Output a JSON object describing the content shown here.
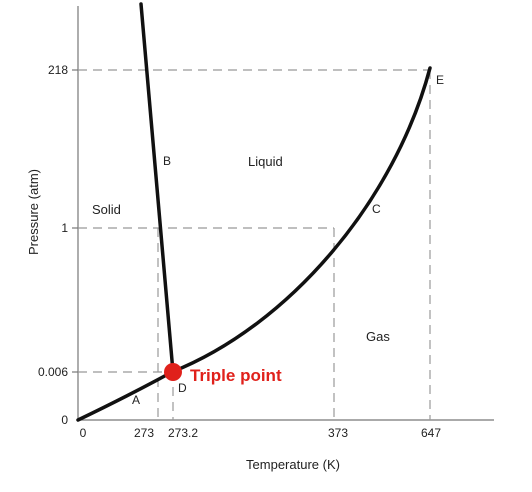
{
  "chart_data": {
    "type": "phase-diagram",
    "xlabel": "Temperature (K)",
    "ylabel": "Pressure (atm)",
    "x_ticks": [
      "0",
      "273",
      "273.2",
      "373",
      "647"
    ],
    "y_ticks": [
      "0",
      "0.006",
      "1",
      "218"
    ],
    "regions": {
      "solid": "Solid",
      "liquid": "Liquid",
      "gas": "Gas"
    },
    "curve_labels": {
      "a": "A",
      "b": "B",
      "c": "C",
      "d": "D",
      "e": "E"
    },
    "triple_point": {
      "label": "Triple point",
      "color": "#e0211b",
      "temperature": 273.16,
      "pressure": 0.006
    },
    "critical_point": {
      "temperature": 647,
      "pressure": 218
    },
    "boiling_point": {
      "temperature": 373,
      "pressure": 1
    },
    "melting_point": {
      "temperature": 273,
      "pressure": 1
    },
    "y_scale": "non-linear",
    "grid": "dashed reference lines"
  }
}
